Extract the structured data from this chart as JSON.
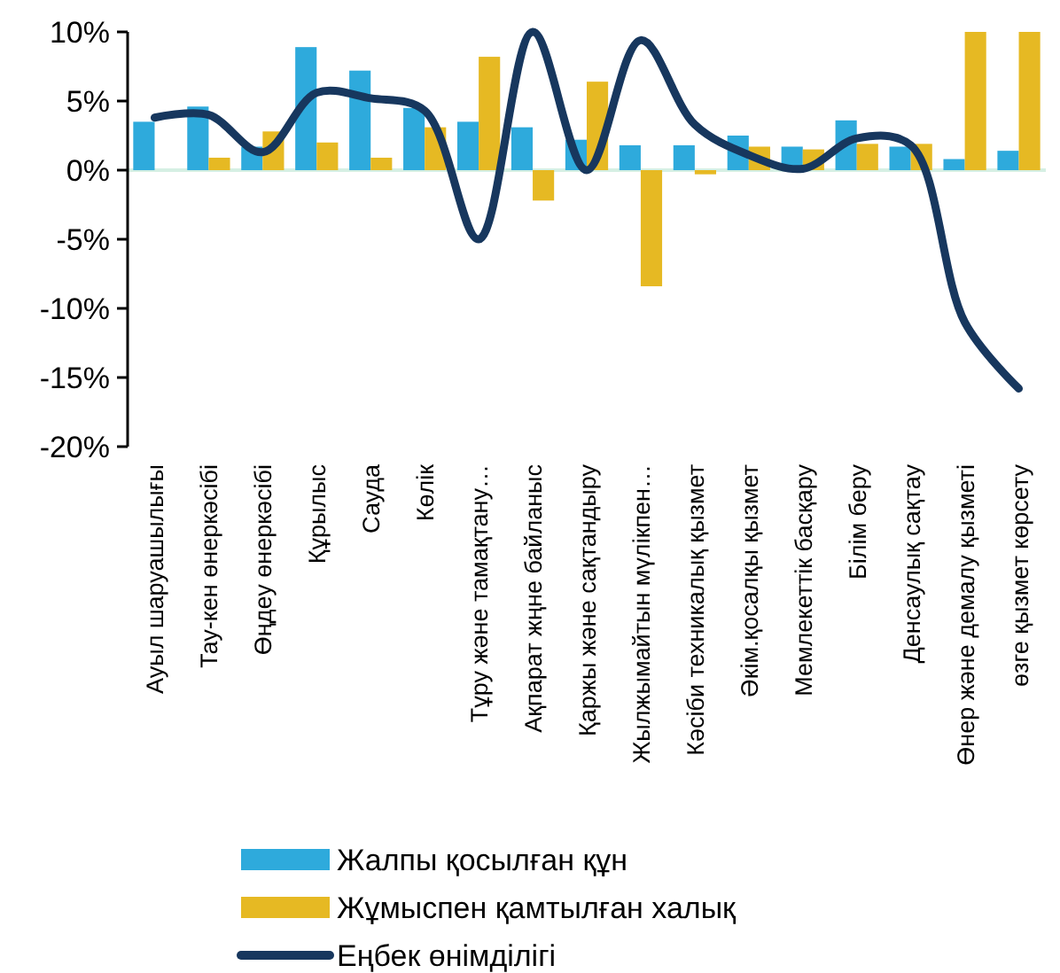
{
  "chart_data": {
    "type": "bar",
    "categories": [
      "Ауыл шаруашылығы",
      "Тау-кен өнеркәсібі",
      "Өңдеу өнеркәсібі",
      "Құрылыс",
      "Сауда",
      "Көлік",
      "Тұру және тамақтану…",
      "Ақпарат жңне байланыс",
      "Қаржы және сақтандыру",
      "Жылжымайтын мүлікпен…",
      "Кәсіби техникалық қызмет",
      "Әкім.қосалқы қызмет",
      "Мемлекеттік басқару",
      "Білім беру",
      "Денсаулық сақтау",
      "Өнер және демалу қызметі",
      "өзге қызмет көрсету"
    ],
    "series": [
      {
        "name": "Жалпы қосылған құн",
        "color": "#2eaadc",
        "values": [
          3.5,
          4.6,
          1.7,
          8.9,
          7.2,
          4.5,
          3.5,
          3.1,
          2.2,
          1.8,
          1.8,
          2.5,
          1.7,
          3.6,
          1.7,
          0.8,
          1.4
        ]
      },
      {
        "name": "Жұмыспен қамтылған халық",
        "color": "#e6b923",
        "values": [
          0,
          0.9,
          2.8,
          2.0,
          0.9,
          3.1,
          8.2,
          -2.2,
          6.4,
          -8.4,
          -0.3,
          1.7,
          1.5,
          1.9,
          1.9,
          10,
          10
        ]
      },
      {
        "name": "Еңбек өнімділігі",
        "type": "line",
        "color": "#17375e",
        "values": [
          3.8,
          4.0,
          1.3,
          5.6,
          5.2,
          4.3,
          -5.0,
          10,
          0,
          9.4,
          3.3,
          1.1,
          0.1,
          2.3,
          1.8,
          -11,
          -15.8
        ]
      }
    ],
    "ylim": [
      -20,
      10
    ],
    "yticks": [
      {
        "value": -20,
        "label": "-20%"
      },
      {
        "value": -15,
        "label": "-15%"
      },
      {
        "value": -10,
        "label": "-10%"
      },
      {
        "value": -5,
        "label": "-5%"
      },
      {
        "value": 0,
        "label": "0%"
      },
      {
        "value": 5,
        "label": "5%"
      },
      {
        "value": 10,
        "label": "10%"
      }
    ],
    "ref_lines": [
      {
        "axis": "y",
        "value": 0,
        "color": "#d5efe3"
      }
    ],
    "grid": false,
    "legend": "bottom",
    "marker": "none"
  }
}
